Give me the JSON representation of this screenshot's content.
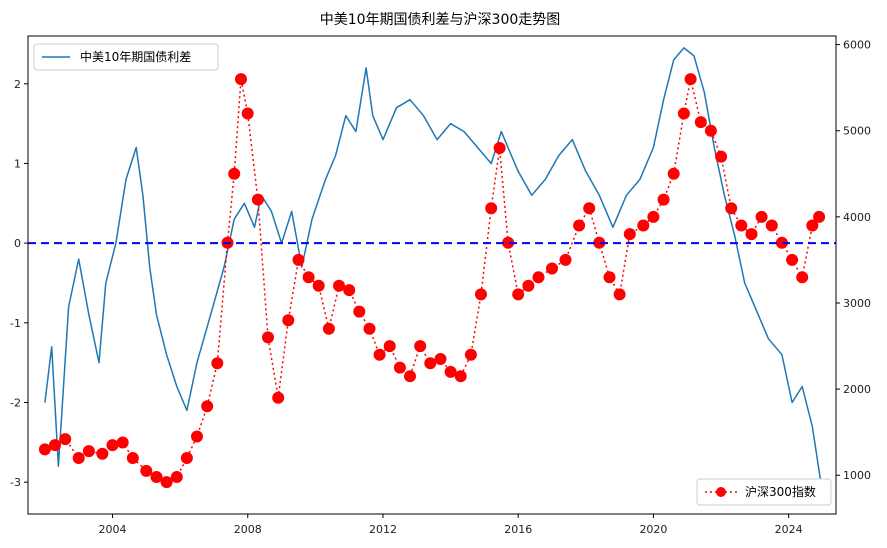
{
  "chart_data": {
    "type": "line",
    "title": "中美10年期国债利差与沪深300走势图",
    "legend_spread": "中美10年期国债利差",
    "legend_index": "沪深300指数",
    "left_axis": {
      "ylim": [
        -3.4,
        2.6
      ],
      "ticks": [
        -3,
        -2,
        -1,
        0,
        1,
        2
      ]
    },
    "right_axis": {
      "ylim": [
        550,
        6100
      ],
      "ticks": [
        1000,
        2000,
        3000,
        4000,
        5000,
        6000
      ]
    },
    "x_axis": {
      "xlim": [
        2001.5,
        2025.4
      ],
      "ticks": [
        2004,
        2008,
        2012,
        2016,
        2020,
        2024
      ],
      "tick_labels": [
        "2004",
        "2008",
        "2012",
        "2016",
        "2020",
        "2024"
      ]
    },
    "reference_line": {
      "y": 0,
      "color": "#0000ff",
      "style": "dashed"
    },
    "series": [
      {
        "axis": "left",
        "color": "#1f77b4",
        "x": [
          2002.0,
          2002.2,
          2002.4,
          2002.7,
          2003.0,
          2003.3,
          2003.6,
          2003.8,
          2004.1,
          2004.4,
          2004.7,
          2004.9,
          2005.1,
          2005.3,
          2005.6,
          2005.9,
          2006.2,
          2006.5,
          2006.9,
          2007.3,
          2007.6,
          2007.9,
          2008.2,
          2008.4,
          2008.7,
          2009.0,
          2009.3,
          2009.6,
          2009.9,
          2010.3,
          2010.6,
          2010.9,
          2011.2,
          2011.5,
          2011.7,
          2012.0,
          2012.4,
          2012.8,
          2013.2,
          2013.6,
          2014.0,
          2014.4,
          2014.8,
          2015.2,
          2015.5,
          2015.8,
          2016.0,
          2016.4,
          2016.8,
          2017.2,
          2017.6,
          2018.0,
          2018.4,
          2018.8,
          2019.2,
          2019.6,
          2020.0,
          2020.3,
          2020.6,
          2020.9,
          2021.2,
          2021.5,
          2021.8,
          2022.1,
          2022.4,
          2022.7,
          2023.0,
          2023.4,
          2023.8,
          2024.1,
          2024.4,
          2024.7,
          2024.95
        ],
        "y": [
          -2.0,
          -1.3,
          -2.8,
          -0.8,
          -0.2,
          -0.9,
          -1.5,
          -0.5,
          0.0,
          0.8,
          1.2,
          0.6,
          -0.3,
          -0.9,
          -1.4,
          -1.8,
          -2.1,
          -1.5,
          -0.9,
          -0.3,
          0.3,
          0.5,
          0.2,
          0.6,
          0.4,
          0.0,
          0.4,
          -0.3,
          0.3,
          0.8,
          1.1,
          1.6,
          1.4,
          2.2,
          1.6,
          1.3,
          1.7,
          1.8,
          1.6,
          1.3,
          1.5,
          1.4,
          1.2,
          1.0,
          1.4,
          1.1,
          0.9,
          0.6,
          0.8,
          1.1,
          1.3,
          0.9,
          0.6,
          0.2,
          0.6,
          0.8,
          1.2,
          1.8,
          2.3,
          2.45,
          2.35,
          1.9,
          1.2,
          0.6,
          0.1,
          -0.5,
          -0.8,
          -1.2,
          -1.4,
          -2.0,
          -1.8,
          -2.3,
          -3.0
        ]
      },
      {
        "axis": "right",
        "color": "#ff0000",
        "marker": "circle",
        "x": [
          2002.0,
          2002.3,
          2002.6,
          2003.0,
          2003.3,
          2003.7,
          2004.0,
          2004.3,
          2004.6,
          2005.0,
          2005.3,
          2005.6,
          2005.9,
          2006.2,
          2006.5,
          2006.8,
          2007.1,
          2007.4,
          2007.6,
          2007.8,
          2008.0,
          2008.3,
          2008.6,
          2008.9,
          2009.2,
          2009.5,
          2009.8,
          2010.1,
          2010.4,
          2010.7,
          2011.0,
          2011.3,
          2011.6,
          2011.9,
          2012.2,
          2012.5,
          2012.8,
          2013.1,
          2013.4,
          2013.7,
          2014.0,
          2014.3,
          2014.6,
          2014.9,
          2015.2,
          2015.45,
          2015.7,
          2016.0,
          2016.3,
          2016.6,
          2017.0,
          2017.4,
          2017.8,
          2018.1,
          2018.4,
          2018.7,
          2019.0,
          2019.3,
          2019.7,
          2020.0,
          2020.3,
          2020.6,
          2020.9,
          2021.1,
          2021.4,
          2021.7,
          2022.0,
          2022.3,
          2022.6,
          2022.9,
          2023.2,
          2023.5,
          2023.8,
          2024.1,
          2024.4,
          2024.7,
          2024.9
        ],
        "y": [
          1300,
          1350,
          1420,
          1200,
          1280,
          1250,
          1350,
          1380,
          1200,
          1050,
          980,
          920,
          980,
          1200,
          1450,
          1800,
          2300,
          3700,
          4500,
          5600,
          5200,
          4200,
          2600,
          1900,
          2800,
          3500,
          3300,
          3200,
          2700,
          3200,
          3150,
          2900,
          2700,
          2400,
          2500,
          2250,
          2150,
          2500,
          2300,
          2350,
          2200,
          2150,
          2400,
          3100,
          4100,
          4800,
          3700,
          3100,
          3200,
          3300,
          3400,
          3500,
          3900,
          4100,
          3700,
          3300,
          3100,
          3800,
          3900,
          4000,
          4200,
          4500,
          5200,
          5600,
          5100,
          5000,
          4700,
          4100,
          3900,
          3800,
          4000,
          3900,
          3700,
          3500,
          3300,
          3900,
          4000
        ]
      }
    ]
  }
}
